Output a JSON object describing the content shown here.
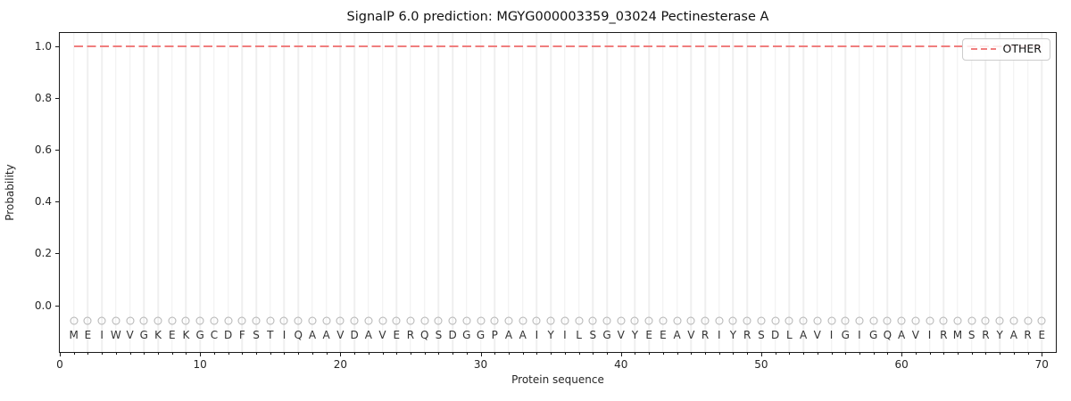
{
  "chart_data": {
    "type": "line",
    "title": "SignalP 6.0 prediction: MGYG000003359_03024 Pectinesterase A",
    "xlabel": "Protein sequence",
    "ylabel": "Probability",
    "xlim": [
      0,
      71
    ],
    "ylim": [
      -0.18,
      1.05
    ],
    "x_ticks": [
      0,
      10,
      20,
      30,
      40,
      50,
      60,
      70
    ],
    "y_ticks": [
      0.0,
      0.2,
      0.4,
      0.6,
      0.8,
      1.0
    ],
    "grid": {
      "vertical_per_residue": true,
      "horizontal": false,
      "color": "#efefef"
    },
    "legend": {
      "position": "upper right",
      "entries": [
        {
          "label": "OTHER",
          "color": "#f07e7e",
          "line_style": "dashed"
        }
      ]
    },
    "sequence": "MEIWVGKEKGCDFSTIQAAVDAVERQSDGGPAAIYILSGVYEEAVRIYRSDLAVIGIGQAVIRMSRYARE",
    "residue_positions": {
      "start": 1,
      "end": 70
    },
    "marker_y": -0.06,
    "letter_y": -0.115,
    "series": [
      {
        "name": "OTHER",
        "color": "#f07e7e",
        "line_style": "dashed",
        "x_start": 1,
        "x_end": 70,
        "values": [
          1.0,
          1.0,
          1.0,
          1.0,
          1.0,
          1.0,
          1.0,
          1.0,
          1.0,
          1.0,
          1.0,
          1.0,
          1.0,
          1.0,
          1.0,
          1.0,
          1.0,
          1.0,
          1.0,
          1.0,
          1.0,
          1.0,
          1.0,
          1.0,
          1.0,
          1.0,
          1.0,
          1.0,
          1.0,
          1.0,
          1.0,
          1.0,
          1.0,
          1.0,
          1.0,
          1.0,
          1.0,
          1.0,
          1.0,
          1.0,
          1.0,
          1.0,
          1.0,
          1.0,
          1.0,
          1.0,
          1.0,
          1.0,
          1.0,
          1.0,
          1.0,
          1.0,
          1.0,
          1.0,
          1.0,
          1.0,
          1.0,
          1.0,
          1.0,
          1.0,
          1.0,
          1.0,
          1.0,
          1.0,
          1.0,
          1.0,
          1.0,
          1.0,
          1.0,
          1.0
        ]
      }
    ],
    "colors": {
      "marker_stroke": "#b3b3b3",
      "letter": "#333333",
      "axis": "#1a1a1a",
      "gridline": "#efefef"
    }
  }
}
